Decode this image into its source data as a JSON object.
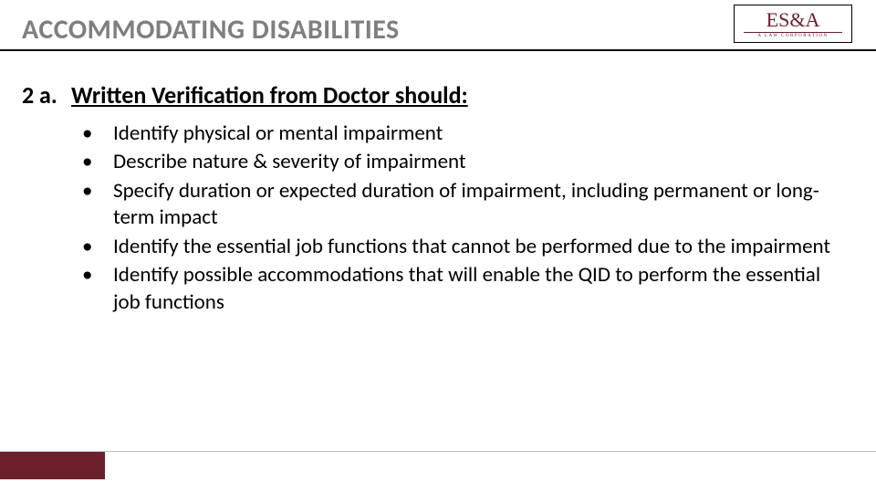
{
  "colors": {
    "title_gray": "#7f7f7f",
    "brand_maroon": "#6b1f2a",
    "footer_gray": "#bfbfbf",
    "text_black": "#000000",
    "background": "#ffffff"
  },
  "typography": {
    "title_size_pt": 30,
    "title_weight": "700",
    "heading_size_pt": 26,
    "heading_weight": "700",
    "bullet_size_pt": 23,
    "font_family": "Calibri"
  },
  "header": {
    "title": "ACCOMMODATING DISABILITIES"
  },
  "logo": {
    "top_text": "ES&A",
    "underline_color": "#6b1f2a",
    "sub_text": "A LAW CORPORATION"
  },
  "section": {
    "number_label": "2 a.",
    "heading": "Written Verification from Doctor should:"
  },
  "bullets": {
    "marker": "•",
    "items": [
      "Identify physical or mental impairment",
      "Describe nature & severity of impairment",
      "Specify duration or expected duration of impairment, including permanent or long-term impact",
      "Identify the essential job functions that cannot be performed due to the impairment",
      "Identify possible accommodations that will enable the QID to perform the essential job functions"
    ]
  },
  "footer": {
    "block_color": "#6b1f2a",
    "line_color": "#bfbfbf"
  }
}
